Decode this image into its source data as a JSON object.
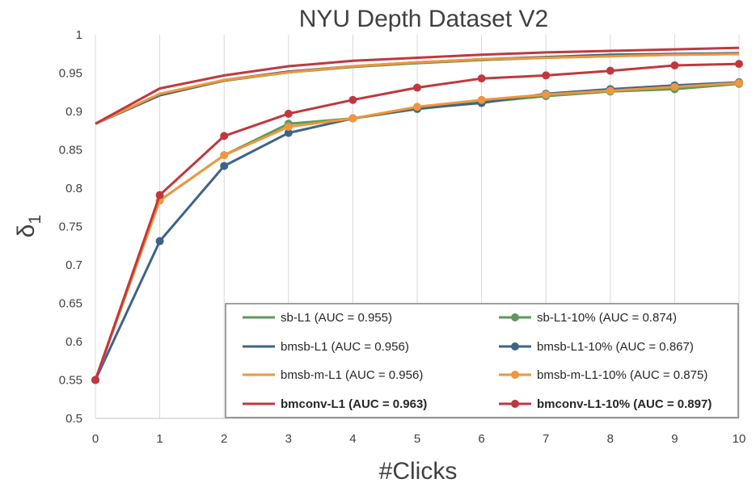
{
  "chart_data": {
    "type": "line",
    "title": "NYU Depth Dataset V2",
    "xlabel": "#Clicks",
    "ylabel": "δ",
    "ylabel_subscript": "1",
    "x": [
      0,
      1,
      2,
      3,
      4,
      5,
      6,
      7,
      8,
      9,
      10
    ],
    "xlim": [
      0,
      10
    ],
    "ylim": [
      0.5,
      1.0
    ],
    "ytick_labels": [
      "0.5",
      "0.55",
      "0.6",
      "0.65",
      "0.7",
      "0.75",
      "0.8",
      "0.85",
      "0.9",
      "0.95",
      "1"
    ],
    "xtick_labels": [
      "0",
      "1",
      "2",
      "3",
      "4",
      "5",
      "6",
      "7",
      "8",
      "9",
      "10"
    ],
    "grid": "vertical",
    "legend_position": "bottom-right",
    "series": [
      {
        "name": "sb-L1 (AUC = 0.955)",
        "color": "#5b9a5b",
        "marker": false,
        "bold": false,
        "values": [
          0.884,
          0.921,
          0.94,
          0.951,
          0.958,
          0.963,
          0.967,
          0.97,
          0.972,
          0.974,
          0.975
        ]
      },
      {
        "name": "bmsb-L1 (AUC = 0.956)",
        "color": "#3d6488",
        "marker": false,
        "bold": false,
        "values": [
          0.884,
          0.921,
          0.941,
          0.952,
          0.959,
          0.964,
          0.968,
          0.971,
          0.974,
          0.975,
          0.976
        ]
      },
      {
        "name": "bmsb-m-L1 (AUC = 0.956)",
        "color": "#f0963c",
        "marker": false,
        "bold": false,
        "values": [
          0.884,
          0.923,
          0.941,
          0.951,
          0.959,
          0.964,
          0.968,
          0.97,
          0.972,
          0.974,
          0.975
        ]
      },
      {
        "name": "bmconv-L1 (AUC = 0.963)",
        "color": "#c0383e",
        "marker": false,
        "bold": true,
        "values": [
          0.884,
          0.93,
          0.947,
          0.959,
          0.966,
          0.97,
          0.974,
          0.977,
          0.979,
          0.981,
          0.983
        ]
      },
      {
        "name": "sb-L1-10% (AUC = 0.874)",
        "color": "#5b9a5b",
        "marker": true,
        "bold": false,
        "values": [
          0.55,
          0.784,
          0.843,
          0.884,
          0.891,
          0.903,
          0.912,
          0.92,
          0.926,
          0.929,
          0.936
        ]
      },
      {
        "name": "bmsb-L1-10% (AUC = 0.867)",
        "color": "#3d6488",
        "marker": true,
        "bold": false,
        "values": [
          0.55,
          0.731,
          0.829,
          0.872,
          0.891,
          0.904,
          0.911,
          0.923,
          0.929,
          0.934,
          0.938
        ]
      },
      {
        "name": "bmsb-m-L1-10% (AUC = 0.875)",
        "color": "#f0963c",
        "marker": true,
        "bold": false,
        "values": [
          0.55,
          0.784,
          0.843,
          0.88,
          0.891,
          0.906,
          0.915,
          0.922,
          0.927,
          0.932,
          0.937
        ]
      },
      {
        "name": "bmconv-L1-10% (AUC = 0.897)",
        "color": "#c0383e",
        "marker": true,
        "bold": true,
        "values": [
          0.55,
          0.791,
          0.868,
          0.897,
          0.915,
          0.931,
          0.943,
          0.947,
          0.953,
          0.96,
          0.962
        ]
      }
    ]
  }
}
